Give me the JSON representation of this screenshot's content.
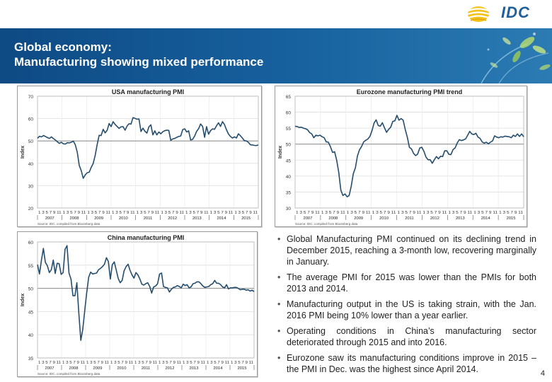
{
  "brand": {
    "logo_text": "IDC"
  },
  "banner": {
    "title_line1": "Global economy:",
    "title_line2": "Manufacturing showing mixed performance"
  },
  "chart_data": [
    {
      "type": "line",
      "title": "USA manufacturing PMI",
      "ylabel": "Index",
      "xlabel": "",
      "ylim": [
        20,
        70
      ],
      "yticks": [
        20,
        30,
        40,
        50,
        60,
        70
      ],
      "reference_line": 50,
      "month_ticks": "1 3 5 7 9 11",
      "years": [
        "2007",
        "2008",
        "2009",
        "2010",
        "2011",
        "2012",
        "2013",
        "2014",
        "2015"
      ],
      "source": "Source: IDC, compiled from Bloomberg data",
      "series": [
        {
          "name": "USA PMI",
          "color": "#244d6e",
          "values": [
            51.2,
            52.1,
            51.8,
            52.4,
            52.0,
            51.5,
            51.1,
            51.8,
            51.0,
            50.4,
            49.6,
            48.9,
            49.4,
            48.7,
            48.6,
            49.2,
            49.1,
            49.4,
            49.9,
            48.3,
            44.9,
            39.0,
            36.7,
            33.3,
            34.8,
            35.8,
            36.0,
            38.2,
            39.9,
            43.5,
            48.4,
            52.5,
            52.4,
            55.2,
            53.6,
            54.7,
            57.8,
            56.4,
            58.6,
            57.4,
            56.5,
            55.6,
            56.3,
            56.4,
            54.8,
            56.6,
            57.7,
            57.5,
            60.4,
            60.1,
            59.7,
            59.8,
            54.2,
            55.7,
            54.3,
            53.5,
            56.3,
            57.2,
            52.7,
            54.5,
            52.7,
            54.0,
            53.2,
            54.1,
            54.6,
            54.8,
            54.7,
            50.3,
            50.9,
            51.1,
            51.6,
            52.0,
            52.2,
            55.1,
            55.4,
            54.0,
            54.5,
            50.4,
            50.7,
            52.2,
            54.3,
            55.5,
            57.6,
            56.5,
            51.6,
            56.4,
            53.0,
            54.6,
            55.4,
            55.2,
            56.8,
            58.1,
            56.5,
            58.6,
            57.3,
            55.0,
            53.1,
            52.0,
            51.3,
            51.8,
            51.3,
            53.2,
            52.3,
            51.3,
            50.1,
            50.0,
            49.4,
            48.3,
            48.2,
            48.0,
            47.9,
            48.2
          ]
        }
      ]
    },
    {
      "type": "line",
      "title": "Eurozone manufacturing PMI trend",
      "ylabel": "Index",
      "xlabel": "",
      "ylim": [
        30,
        65
      ],
      "yticks": [
        30,
        35,
        40,
        45,
        50,
        55,
        60,
        65
      ],
      "reference_line": 50,
      "month_ticks": "1 3 5 7 9 11",
      "years": [
        "2007",
        "2008",
        "2009",
        "2010",
        "2011",
        "2012",
        "2013",
        "2014",
        "2015"
      ],
      "source": "Source: IDC, compiled from Bloomberg data",
      "series": [
        {
          "name": "Eurozone PMI",
          "color": "#244d6e",
          "values": [
            55.6,
            55.5,
            55.2,
            55.3,
            55.0,
            54.8,
            54.5,
            53.6,
            53.2,
            52.0,
            52.8,
            52.6,
            52.8,
            52.3,
            52.0,
            50.7,
            50.6,
            49.2,
            47.4,
            47.6,
            45.0,
            41.1,
            35.6,
            33.9,
            34.4,
            33.5,
            33.9,
            36.8,
            40.7,
            42.6,
            46.3,
            48.2,
            49.3,
            50.7,
            51.2,
            51.6,
            52.4,
            54.2,
            56.6,
            57.6,
            55.8,
            55.6,
            56.7,
            55.1,
            53.7,
            54.6,
            55.3,
            57.1,
            57.3,
            59.0,
            57.5,
            58.0,
            57.5,
            54.6,
            52.1,
            49.0,
            48.5,
            47.1,
            46.4,
            46.9,
            48.8,
            49.0,
            47.7,
            45.9,
            45.1,
            45.1,
            44.0,
            45.1,
            46.1,
            45.4,
            46.2,
            46.1,
            47.9,
            47.9,
            46.8,
            46.7,
            48.3,
            48.8,
            50.3,
            51.4,
            51.1,
            51.3,
            51.6,
            52.7,
            54.0,
            53.2,
            53.0,
            53.4,
            52.2,
            51.8,
            50.7,
            50.3,
            50.6,
            50.1,
            50.6,
            51.0,
            52.6,
            52.2,
            52.0,
            52.3,
            52.2,
            52.5,
            52.4,
            52.3,
            52.0,
            52.8,
            52.4,
            53.2,
            52.4,
            53.2,
            52.3
          ]
        }
      ]
    },
    {
      "type": "line",
      "title": "China manufacturing PMI",
      "ylabel": "Index",
      "xlabel": "",
      "ylim": [
        35,
        60
      ],
      "yticks": [
        35,
        40,
        45,
        50,
        55,
        60
      ],
      "reference_line": 50,
      "month_ticks": "1 3 5 7 9 11",
      "years": [
        "2007",
        "2008",
        "2009",
        "2010",
        "2011",
        "2012",
        "2013",
        "2014",
        "2015"
      ],
      "source": "Source: IDC, compiled from Bloomberg data",
      "series": [
        {
          "name": "China PMI",
          "color": "#244d6e",
          "values": [
            55.1,
            53.1,
            56.1,
            58.6,
            55.6,
            54.9,
            53.4,
            54.0,
            56.1,
            53.2,
            55.4,
            55.3,
            53.0,
            53.4,
            58.4,
            59.2,
            53.3,
            52.0,
            48.4,
            48.4,
            51.2,
            44.6,
            38.8,
            41.2,
            45.3,
            49.0,
            52.4,
            53.5,
            53.1,
            53.2,
            53.3,
            54.0,
            54.3,
            54.7,
            55.2,
            56.6,
            55.8,
            52.0,
            55.1,
            55.7,
            53.9,
            52.1,
            51.2,
            51.7,
            53.8,
            54.7,
            55.2,
            53.9,
            52.9,
            52.2,
            53.4,
            52.9,
            52.0,
            50.9,
            50.7,
            51.0,
            51.2,
            50.4,
            49.0,
            50.3,
            50.5,
            51.0,
            53.1,
            53.3,
            50.4,
            50.2,
            50.1,
            49.2,
            49.8,
            50.2,
            50.3,
            50.6,
            50.4,
            50.1,
            50.9,
            50.6,
            50.8,
            50.1,
            50.3,
            51.0,
            51.1,
            51.4,
            51.4,
            51.0,
            50.5,
            50.2,
            50.3,
            50.4,
            50.8,
            51.0,
            51.7,
            51.1,
            51.1,
            50.8,
            50.3,
            50.1,
            50.8,
            49.9,
            50.1,
            50.1,
            50.2,
            50.2,
            50.0,
            49.7,
            49.8,
            49.8,
            49.6,
            49.7,
            49.4,
            49.6,
            49.3
          ]
        }
      ]
    }
  ],
  "bullets": [
    "Global Manufacturing PMI continued on its declining trend in December 2015, reaching a 3-month low, recovering marginally in January.",
    "The average PMI for 2015 was lower than the PMIs for both 2013 and 2014.",
    "Manufacturing output in the US is taking strain, with the Jan. 2016 PMI being 10% lower than a year earlier.",
    "Operating conditions in China’s manufacturing sector deteriorated through 2015 and into 2016.",
    "Eurozone saw its manufacturing conditions improve in 2015 – the PMI in Dec. was the highest since April 2014."
  ],
  "bullet_glyph": "•",
  "page_number": "4"
}
